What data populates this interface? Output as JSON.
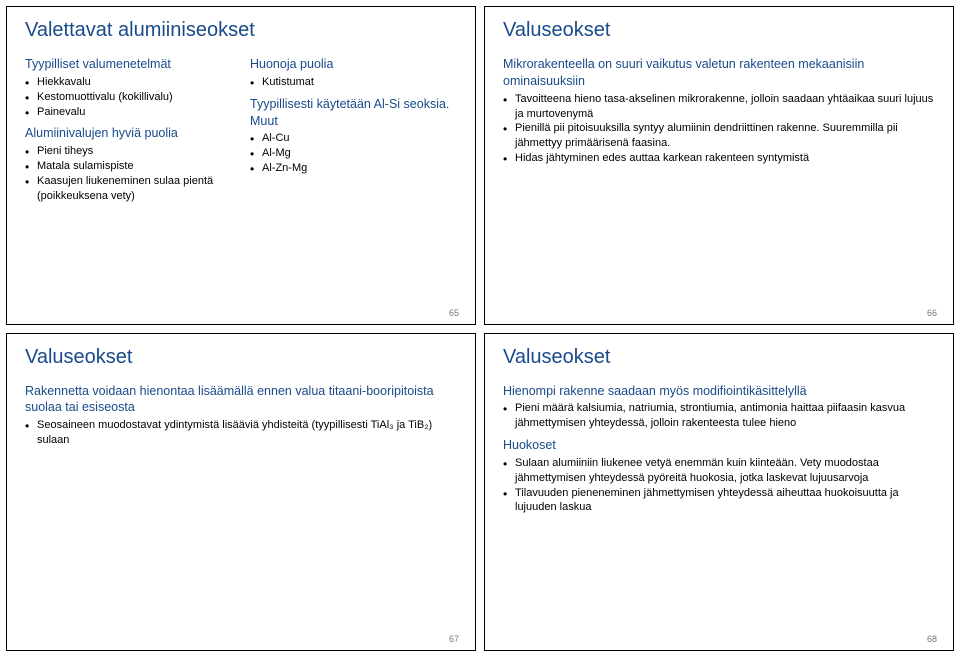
{
  "colors": {
    "heading_blue": "#1a4a8a",
    "body_text": "#000000",
    "border": "#000000",
    "page_number": "#777777",
    "background": "#ffffff"
  },
  "slides": {
    "s1": {
      "title": "Valettavat alumiiniseokset",
      "left": {
        "sub1": "Tyypilliset valumenetelmät",
        "b1_1": "Hiekkavalu",
        "b1_2": "Kestomuottivalu (kokillivalu)",
        "b1_3": "Painevalu",
        "sub2": "Alumiinivalujen hyviä puolia",
        "b2_1": "Pieni tiheys",
        "b2_2": "Matala sulamispiste",
        "b2_3": "Kaasujen liukeneminen sulaa pientä (poikkeuksena vety)"
      },
      "right": {
        "sub1": "Huonoja puolia",
        "b1_1": "Kutistumat",
        "sub2": "Tyypillisesti käytetään Al-Si seoksia. Muut",
        "b2_1": "Al-Cu",
        "b2_2": "Al-Mg",
        "b2_3": "Al-Zn-Mg"
      },
      "page": "65"
    },
    "s2": {
      "title": "Valuseokset",
      "sub1": "Mikrorakenteella on suuri vaikutus valetun rakenteen mekaanisiin ominaisuuksiin",
      "b1_1": "Tavoitteena hieno tasa-akselinen mikrorakenne, jolloin saadaan yhtäaikaa suuri lujuus ja murtovenymä",
      "b1_2": "Pienillä pii pitoisuuksilla syntyy alumiinin dendriittinen rakenne. Suuremmilla pii jähmettyy primäärisenä faasina.",
      "b1_3": "Hidas jähtyminen edes auttaa karkean rakenteen syntymistä",
      "page": "66"
    },
    "s3": {
      "title": "Valuseokset",
      "sub1": "Rakennetta voidaan hienontaa lisäämällä ennen valua titaani-booripitoista suolaa tai esiseosta",
      "b1_1": "Seosaineen muodostavat ydintymistä lisääviä yhdisteitä (tyypillisesti TiAl₃ ja TiB₂) sulaan",
      "page": "67"
    },
    "s4": {
      "title": "Valuseokset",
      "sub1": "Hienompi rakenne saadaan myös modifiointikäsittelyllä",
      "b1_1": "Pieni määrä kalsiumia, natriumia, strontiumia, antimonia haittaa piifaasin kasvua jähmettymisen yhteydessä, jolloin rakenteesta tulee hieno",
      "sub2": "Huokoset",
      "b2_1": "Sulaan alumiiniin liukenee vetyä enemmän kuin kiinteään. Vety muodostaa jähmettymisen yhteydessä pyöreitä huokosia, jotka laskevat lujuusarvoja",
      "b2_2": "Tilavuuden pieneneminen jähmettymisen yhteydessä aiheuttaa huokoisuutta ja lujuuden laskua",
      "page": "68"
    }
  }
}
